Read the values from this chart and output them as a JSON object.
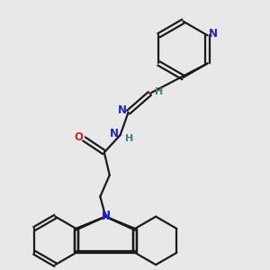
{
  "bg_color": "#e8e8e8",
  "bond_color": "#1a1a1a",
  "N_color": "#2222cc",
  "O_color": "#cc2222",
  "H_color": "#408080",
  "lw": 1.6,
  "fig_size": [
    3.0,
    3.0
  ],
  "dpi": 100,
  "xlim": [
    0,
    10
  ],
  "ylim": [
    0,
    10
  ]
}
